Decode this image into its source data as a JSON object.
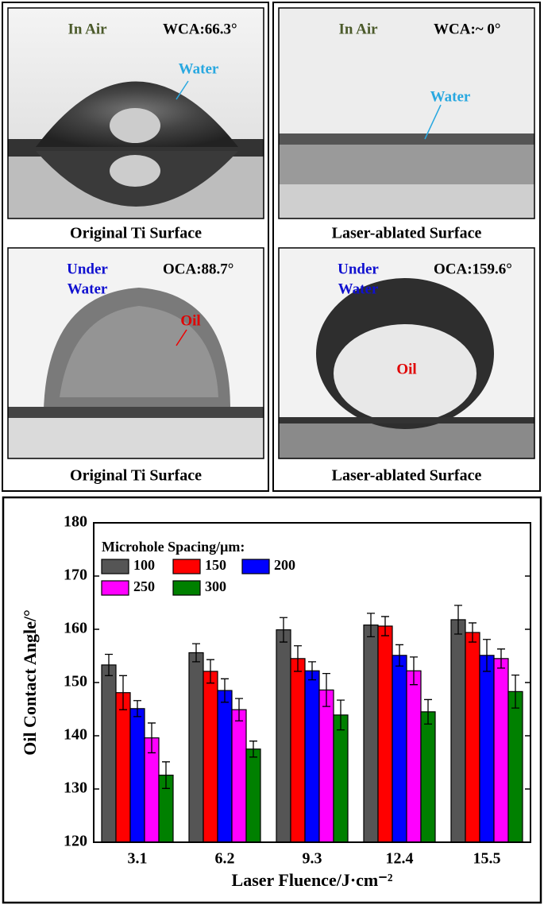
{
  "panels": [
    {
      "condition": [
        "In Air"
      ],
      "angle": "WCA:66.3°",
      "liquid": "Water",
      "caption": "Original Ti Surface"
    },
    {
      "condition": [
        "In Air"
      ],
      "angle": "WCA:~ 0°",
      "liquid": "Water",
      "caption": "Laser-ablated Surface"
    },
    {
      "condition": [
        "Under",
        "Water"
      ],
      "angle": "OCA:88.7°",
      "liquid": "Oil",
      "caption": "Original Ti Surface"
    },
    {
      "condition": [
        "Under",
        "Water"
      ],
      "angle": "OCA:159.6°",
      "liquid": "Oil",
      "caption": "Laser-ablated Surface"
    }
  ],
  "chart_data": {
    "type": "bar",
    "x_label": "Laser Fluence/J·cm⁻²",
    "y_label": "Oil Contact Angle/°",
    "legend_title": "Microhole Spacing/μm:",
    "categories": [
      "3.1",
      "6.2",
      "9.3",
      "12.4",
      "15.5"
    ],
    "series": [
      {
        "name": "100",
        "color": "#555555",
        "values": [
          153.3,
          155.6,
          159.9,
          160.8,
          161.8
        ],
        "errors": [
          2.0,
          1.7,
          2.3,
          2.2,
          2.7
        ]
      },
      {
        "name": "150",
        "color": "#ff0000",
        "values": [
          148.1,
          152.1,
          154.5,
          160.6,
          159.4
        ],
        "errors": [
          3.2,
          2.2,
          2.4,
          1.8,
          1.8
        ]
      },
      {
        "name": "200",
        "color": "#0000ff",
        "values": [
          145.1,
          148.5,
          152.2,
          155.1,
          155.1
        ],
        "errors": [
          1.5,
          2.2,
          1.7,
          2.0,
          3.0
        ]
      },
      {
        "name": "250",
        "color": "#ff00ff",
        "values": [
          139.6,
          144.9,
          148.6,
          152.2,
          154.5
        ],
        "errors": [
          2.8,
          2.1,
          3.1,
          2.6,
          1.8
        ]
      },
      {
        "name": "300",
        "color": "#008000",
        "values": [
          132.6,
          137.5,
          143.9,
          144.5,
          148.3
        ],
        "errors": [
          2.5,
          1.5,
          2.8,
          2.3,
          3.1
        ]
      }
    ],
    "ylim": [
      120,
      180
    ],
    "yticks": [
      120,
      130,
      140,
      150,
      160,
      170,
      180
    ],
    "grid": false
  }
}
